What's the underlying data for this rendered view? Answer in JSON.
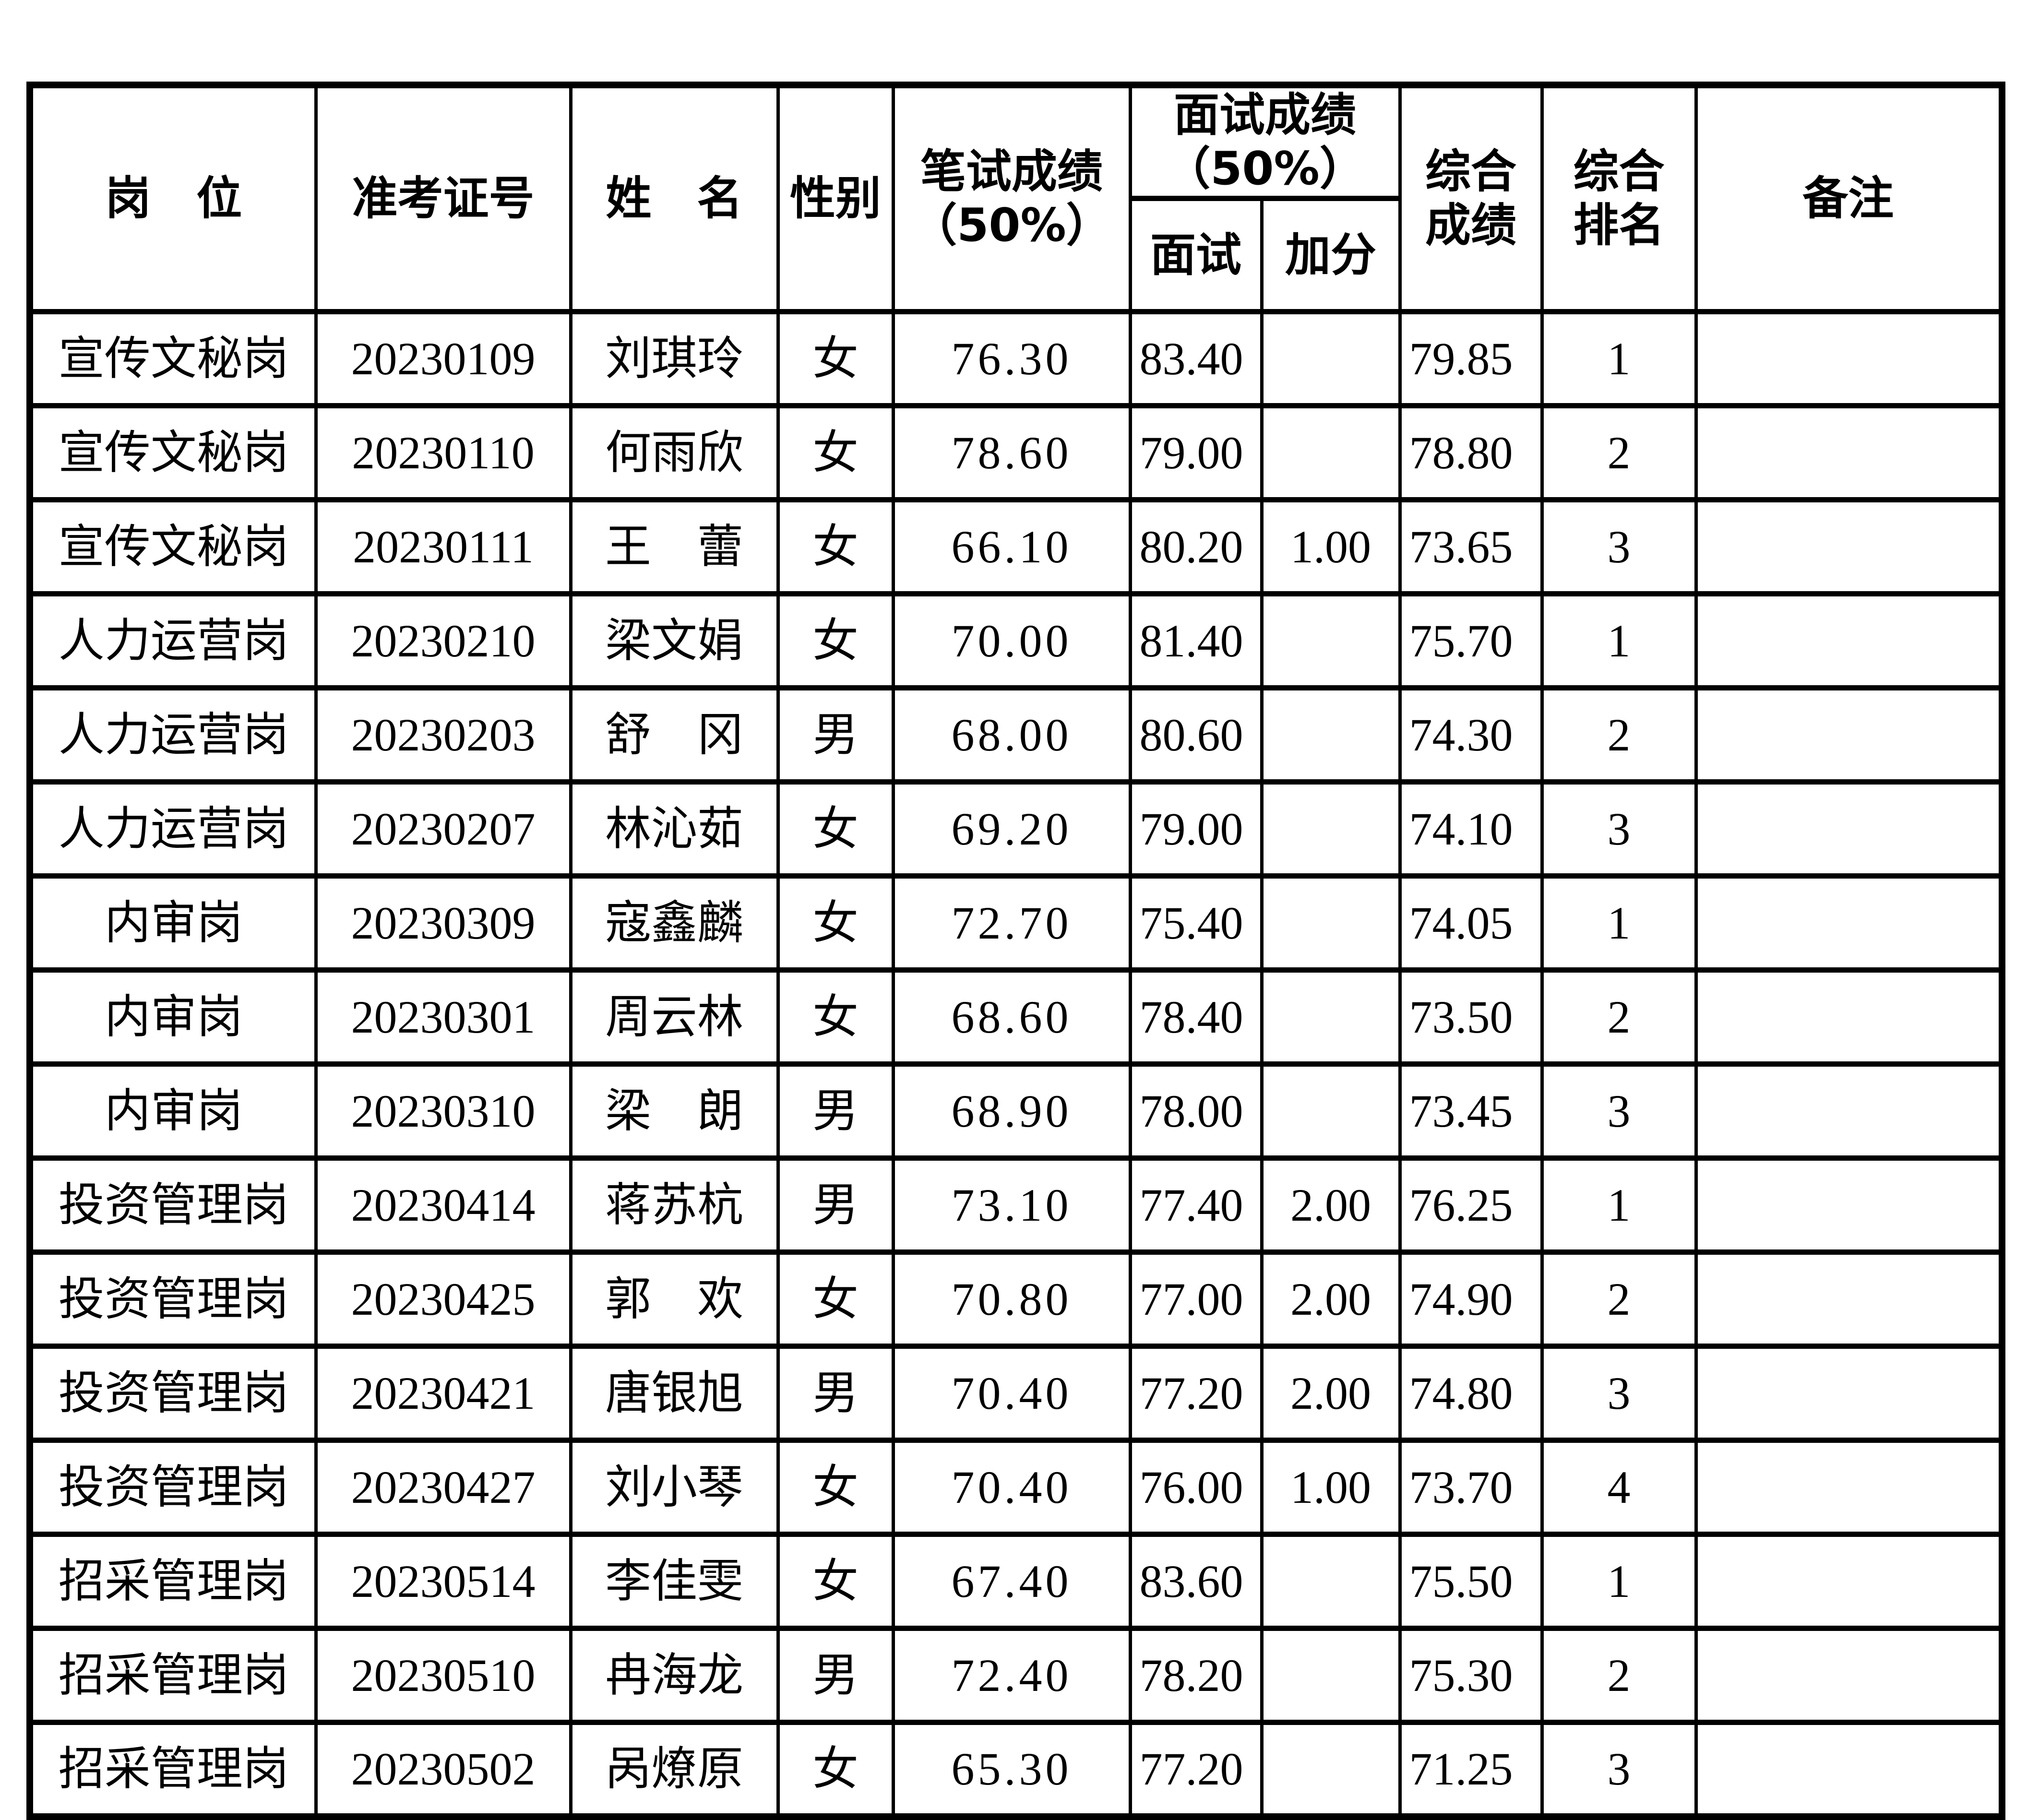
{
  "colors": {
    "background": "#ffffff",
    "border": "#000000",
    "text": "#000000"
  },
  "table": {
    "headers": {
      "position": "岗　位",
      "ticket": "准考证号",
      "name": "姓　名",
      "gender": "性别",
      "written_line1": "笔试成绩",
      "written_line2": "（50%）",
      "interview_group_line1": "面试成绩",
      "interview_group_line2": "（50%）",
      "interview": "面试",
      "bonus": "加分",
      "total_line1": "综合",
      "total_line2": "成绩",
      "rank_line1": "综合",
      "rank_line2": "排名",
      "remark": "备注"
    },
    "rows": [
      {
        "position": "宣传文秘岗",
        "ticket": "20230109",
        "name": "刘琪玲",
        "gender": "女",
        "written": "76.30",
        "interview": "83.40",
        "bonus": "",
        "total": "79.85",
        "rank": "1",
        "remark": ""
      },
      {
        "position": "宣传文秘岗",
        "ticket": "20230110",
        "name": "何雨欣",
        "gender": "女",
        "written": "78.60",
        "interview": "79.00",
        "bonus": "",
        "total": "78.80",
        "rank": "2",
        "remark": ""
      },
      {
        "position": "宣传文秘岗",
        "ticket": "20230111",
        "name": "王　蕾",
        "gender": "女",
        "written": "66.10",
        "interview": "80.20",
        "bonus": "1.00",
        "total": "73.65",
        "rank": "3",
        "remark": ""
      },
      {
        "position": "人力运营岗",
        "ticket": "20230210",
        "name": "梁文娟",
        "gender": "女",
        "written": "70.00",
        "interview": "81.40",
        "bonus": "",
        "total": "75.70",
        "rank": "1",
        "remark": ""
      },
      {
        "position": "人力运营岗",
        "ticket": "20230203",
        "name": "舒　冈",
        "gender": "男",
        "written": "68.00",
        "interview": "80.60",
        "bonus": "",
        "total": "74.30",
        "rank": "2",
        "remark": ""
      },
      {
        "position": "人力运营岗",
        "ticket": "20230207",
        "name": "林沁茹",
        "gender": "女",
        "written": "69.20",
        "interview": "79.00",
        "bonus": "",
        "total": "74.10",
        "rank": "3",
        "remark": ""
      },
      {
        "position": "内审岗",
        "ticket": "20230309",
        "name": "寇鑫麟",
        "gender": "女",
        "written": "72.70",
        "interview": "75.40",
        "bonus": "",
        "total": "74.05",
        "rank": "1",
        "remark": ""
      },
      {
        "position": "内审岗",
        "ticket": "20230301",
        "name": "周云林",
        "gender": "女",
        "written": "68.60",
        "interview": "78.40",
        "bonus": "",
        "total": "73.50",
        "rank": "2",
        "remark": ""
      },
      {
        "position": "内审岗",
        "ticket": "20230310",
        "name": "梁　朗",
        "gender": "男",
        "written": "68.90",
        "interview": "78.00",
        "bonus": "",
        "total": "73.45",
        "rank": "3",
        "remark": ""
      },
      {
        "position": "投资管理岗",
        "ticket": "20230414",
        "name": "蒋苏杭",
        "gender": "男",
        "written": "73.10",
        "interview": "77.40",
        "bonus": "2.00",
        "total": "76.25",
        "rank": "1",
        "remark": ""
      },
      {
        "position": "投资管理岗",
        "ticket": "20230425",
        "name": "郭　欢",
        "gender": "女",
        "written": "70.80",
        "interview": "77.00",
        "bonus": "2.00",
        "total": "74.90",
        "rank": "2",
        "remark": ""
      },
      {
        "position": "投资管理岗",
        "ticket": "20230421",
        "name": "唐银旭",
        "gender": "男",
        "written": "70.40",
        "interview": "77.20",
        "bonus": "2.00",
        "total": "74.80",
        "rank": "3",
        "remark": ""
      },
      {
        "position": "投资管理岗",
        "ticket": "20230427",
        "name": "刘小琴",
        "gender": "女",
        "written": "70.40",
        "interview": "76.00",
        "bonus": "1.00",
        "total": "73.70",
        "rank": "4",
        "remark": ""
      },
      {
        "position": "招采管理岗",
        "ticket": "20230514",
        "name": "李佳雯",
        "gender": "女",
        "written": "67.40",
        "interview": "83.60",
        "bonus": "",
        "total": "75.50",
        "rank": "1",
        "remark": ""
      },
      {
        "position": "招采管理岗",
        "ticket": "20230510",
        "name": "冉海龙",
        "gender": "男",
        "written": "72.40",
        "interview": "78.20",
        "bonus": "",
        "total": "75.30",
        "rank": "2",
        "remark": ""
      },
      {
        "position": "招采管理岗",
        "ticket": "20230502",
        "name": "呙燎原",
        "gender": "女",
        "written": "65.30",
        "interview": "77.20",
        "bonus": "",
        "total": "71.25",
        "rank": "3",
        "remark": ""
      }
    ]
  }
}
